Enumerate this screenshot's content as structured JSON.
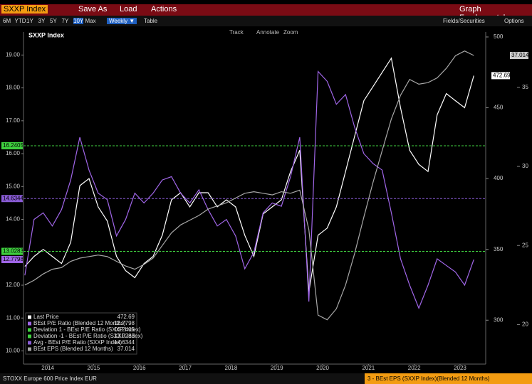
{
  "toolbar": {
    "security": "SXXP Index",
    "save_as": "Save As",
    "load": "Load",
    "actions": "Actions",
    "function": "Graph Fundamentals"
  },
  "range_bar": {
    "ranges": [
      "6M",
      "YTD",
      "1Y",
      "3Y",
      "5Y",
      "7Y",
      "10Y",
      "Max"
    ],
    "frequency": "Weekly ▼",
    "table": "Table",
    "fields": "Fields/Securities",
    "options": "Options"
  },
  "chart_tools": [
    "Track",
    "Annotate",
    "Zoom"
  ],
  "footer": {
    "left": "STOXX Europe 600 Price Index EUR",
    "right": "3 - BEst EPS (SXXP Index)(Blended 12 Months)"
  },
  "chart_data": {
    "type": "line",
    "title": "SXXP Index",
    "x": [
      2014,
      2014.2,
      2014.4,
      2014.6,
      2014.8,
      2015,
      2015.2,
      2015.4,
      2015.6,
      2015.8,
      2016,
      2016.2,
      2016.4,
      2016.6,
      2016.8,
      2017,
      2017.2,
      2017.4,
      2017.6,
      2017.8,
      2018,
      2018.2,
      2018.4,
      2018.6,
      2018.8,
      2019,
      2019.2,
      2019.4,
      2019.6,
      2019.8,
      2020,
      2020.2,
      2020.4,
      2020.6,
      2020.8,
      2021,
      2021.2,
      2021.4,
      2021.6,
      2021.8,
      2022,
      2022.2,
      2022.4,
      2022.6,
      2022.8,
      2023,
      2023.2,
      2023.4,
      2023.6,
      2023.8
    ],
    "xlim": [
      2013.97,
      2024.06
    ],
    "xticks": [
      {
        "value": 2014.5,
        "label": "2014"
      },
      {
        "value": 2015.5,
        "label": "2015"
      },
      {
        "value": 2016.5,
        "label": "2016"
      },
      {
        "value": 2017.5,
        "label": "2017"
      },
      {
        "value": 2018.5,
        "label": "2018"
      },
      {
        "value": 2019.5,
        "label": "2019"
      },
      {
        "value": 2020.5,
        "label": "2020"
      },
      {
        "value": 2021.5,
        "label": "2021"
      },
      {
        "value": 2022.5,
        "label": "2022"
      },
      {
        "value": 2023.5,
        "label": "2023"
      }
    ],
    "ylim": [
      9.6,
      19.7
    ],
    "yticks": [
      {
        "value": 10,
        "label": "10.00"
      },
      {
        "value": 11,
        "label": "11.00"
      },
      {
        "value": 12,
        "label": "12.00"
      },
      {
        "value": 13,
        "label": "13.00"
      },
      {
        "value": 14,
        "label": "14.00"
      },
      {
        "value": 15,
        "label": "15.00"
      },
      {
        "value": 16,
        "label": "16.00"
      },
      {
        "value": 17,
        "label": "17.00"
      },
      {
        "value": 18,
        "label": "18.00"
      },
      {
        "value": 19,
        "label": "19.00"
      }
    ],
    "y2lim": [
      269,
      503.5
    ],
    "y2ticks": [
      300,
      350,
      400,
      450,
      500
    ],
    "y3lim": [
      17.5,
      38.5
    ],
    "y3ticks": [
      20,
      25,
      30,
      35
    ],
    "series": [
      {
        "name": "Last Price",
        "color": "#ffffff",
        "axis": "y2",
        "values": [
          338,
          345,
          350,
          345,
          340,
          355,
          395,
          400,
          380,
          370,
          345,
          335,
          330,
          340,
          345,
          360,
          385,
          390,
          380,
          390,
          390,
          380,
          385,
          380,
          360,
          345,
          375,
          380,
          385,
          405,
          420,
          320,
          360,
          365,
          380,
          405,
          430,
          455,
          465,
          475,
          485,
          450,
          420,
          410,
          405,
          445,
          460,
          455,
          450,
          472.69
        ]
      },
      {
        "name": "BEst P/E Ratio (Blended 12 Months)",
        "color": "#a066e8",
        "axis": "y",
        "values": [
          12.3,
          14.0,
          14.2,
          13.8,
          14.3,
          15.2,
          16.5,
          15.5,
          14.8,
          14.6,
          13.5,
          14.0,
          14.8,
          14.5,
          14.8,
          15.2,
          15.3,
          14.8,
          14.5,
          14.9,
          14.3,
          13.8,
          14.0,
          13.5,
          12.5,
          13.0,
          14.2,
          14.5,
          14.4,
          15.3,
          16.5,
          11.5,
          18.5,
          18.2,
          17.5,
          17.8,
          16.8,
          16.0,
          15.7,
          15.5,
          14.2,
          12.8,
          12.0,
          11.3,
          12.0,
          12.8,
          12.6,
          12.4,
          12.0,
          12.7798
        ]
      },
      {
        "name": "Deviation 1 - BEst P/E Ratio (SXXP Index)",
        "color": "#3fd13f",
        "axis": "y",
        "value": 16.2405
      },
      {
        "name": "Deviation -1 - BEst P/E Ratio (SXXP Index)",
        "color": "#3fd13f",
        "axis": "y",
        "value": 13.0283
      },
      {
        "name": "Avg - BEst P/E Ratio (SXXP Index)",
        "color": "#8a5cd6",
        "axis": "y",
        "value": 14.6344
      },
      {
        "name": "BEst EPS (Blended 12 Months)",
        "color": "#a8a8a8",
        "axis": "y3",
        "values": [
          22.5,
          22.8,
          23.2,
          23.5,
          23.6,
          24.0,
          24.2,
          24.3,
          24.4,
          24.3,
          24.0,
          23.7,
          23.5,
          23.8,
          24.2,
          25.0,
          25.8,
          26.3,
          26.6,
          26.9,
          27.3,
          27.5,
          27.7,
          28.0,
          28.3,
          28.4,
          28.3,
          28.2,
          28.4,
          28.3,
          28.5,
          26.0,
          20.6,
          20.3,
          21.0,
          22.5,
          24.5,
          26.8,
          29.0,
          31.0,
          33.0,
          34.5,
          35.5,
          35.2,
          35.3,
          35.6,
          36.2,
          37.0,
          37.3,
          37.014
        ]
      }
    ]
  }
}
